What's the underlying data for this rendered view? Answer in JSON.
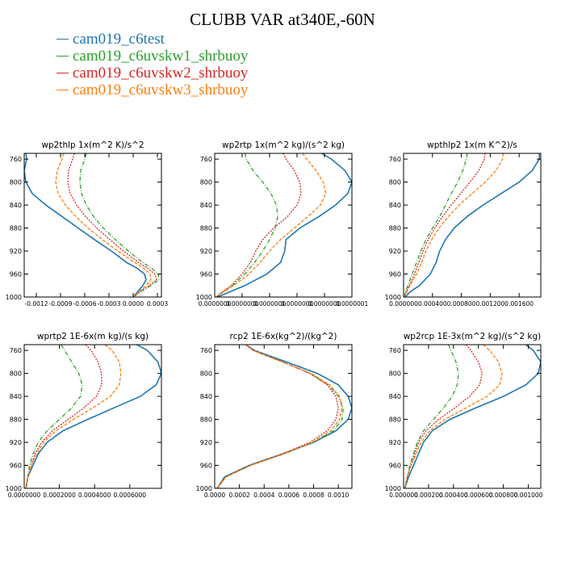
{
  "title": "CLUBB VAR at340E,-60N",
  "series": [
    {
      "name": "cam019_c6test",
      "color": "#1f77b4",
      "dash": ""
    },
    {
      "name": "cam019_c6uvskw1_shrbuoy",
      "color": "#2ca02c",
      "dash": "5,2,1,2"
    },
    {
      "name": "cam019_c6uvskw2_shrbuoy",
      "color": "#d62728",
      "dash": "2,1.5"
    },
    {
      "name": "cam019_c6uvskw3_shrbuoy",
      "color": "#ff7f0e",
      "dash": "4,2"
    }
  ],
  "chart_data": [
    {
      "type": "line",
      "title": "wp2thlp   1x(m^2 K)/s^2",
      "xlim": [
        -0.00135,
        0.00035
      ],
      "ylim": [
        1000,
        750
      ],
      "xticks": [
        -0.0012,
        -0.0009,
        -0.0006,
        -0.0003,
        0.0,
        0.0003
      ],
      "xtick_labels": [
        "-0.0012",
        "-0.0009",
        "-0.0006",
        "-0.0003",
        "0.0000",
        "0.0003"
      ],
      "yticks": [
        760,
        800,
        840,
        880,
        920,
        960,
        1000
      ],
      "p": [
        750,
        760,
        780,
        800,
        820,
        840,
        860,
        880,
        900,
        920,
        940,
        950,
        960,
        970,
        980,
        990,
        1000
      ],
      "series_x": [
        [
          -0.00133,
          -0.00132,
          -0.00135,
          -0.00133,
          -0.00125,
          -0.00108,
          -0.00088,
          -0.00068,
          -0.00048,
          -0.00027,
          -8e-05,
          5e-05,
          0.00014,
          0.00016,
          0.00012,
          6e-05,
          0.0
        ],
        [
          -0.00058,
          -0.0006,
          -0.00065,
          -0.00066,
          -0.00064,
          -0.00058,
          -0.00049,
          -0.00037,
          -0.00022,
          -6e-05,
          0.00012,
          0.00023,
          0.00031,
          0.00032,
          0.00022,
          0.0001,
          0.0
        ],
        [
          -0.00073,
          -0.00075,
          -0.0008,
          -0.00081,
          -0.00078,
          -0.0007,
          -0.00059,
          -0.00045,
          -0.00029,
          -0.00012,
          7e-05,
          0.00018,
          0.00027,
          0.00029,
          0.0002,
          9e-05,
          0.0
        ],
        [
          -0.00086,
          -0.00088,
          -0.00094,
          -0.00096,
          -0.00093,
          -0.00084,
          -0.00071,
          -0.00056,
          -0.00038,
          -0.00019,
          2e-05,
          0.00013,
          0.00021,
          0.00022,
          0.00016,
          8e-05,
          0.0
        ]
      ]
    },
    {
      "type": "line",
      "title": "wp2rtp   1x(m^2 kg)/(s^2 kg)",
      "xlim": [
        0.0,
        1e-07
      ],
      "ylim": [
        1000,
        750
      ],
      "xticks": [
        0.0,
        2e-08,
        4e-08,
        6e-08,
        8e-08,
        1e-07
      ],
      "xtick_labels": [
        "0.0000000",
        "0.0000000",
        "0.0000000",
        "0.0000000",
        "0.0000000",
        "0.0000001"
      ],
      "yticks": [
        760,
        800,
        840,
        880,
        920,
        960,
        1000
      ],
      "p": [
        750,
        760,
        780,
        800,
        820,
        840,
        860,
        880,
        900,
        920,
        940,
        960,
        980,
        990,
        1000
      ],
      "series_x": [
        [
          7.8e-08,
          8.5e-08,
          9.5e-08,
          1e-07,
          9.7e-08,
          8.8e-08,
          7.6e-08,
          6.2e-08,
          5.2e-08,
          5.1e-08,
          4.8e-08,
          3.8e-08,
          2.2e-08,
          1.2e-08,
          2e-09
        ],
        [
          2.2e-08,
          2.3e-08,
          2.8e-08,
          3.5e-08,
          4.1e-08,
          4.5e-08,
          4.6e-08,
          4.4e-08,
          4e-08,
          3.5e-08,
          2.9e-08,
          2.2e-08,
          1.3e-08,
          7e-09,
          1e-09
        ],
        [
          5e-08,
          5.2e-08,
          5.8e-08,
          6.2e-08,
          6.3e-08,
          6e-08,
          5.3e-08,
          4.3e-08,
          3.5e-08,
          3e-08,
          2.6e-08,
          2e-08,
          1.2e-08,
          6e-09,
          1e-09
        ],
        [
          6.4e-08,
          6.7e-08,
          7.4e-08,
          7.9e-08,
          8.1e-08,
          7.7e-08,
          6.8e-08,
          5.8e-08,
          4.8e-08,
          4e-08,
          3.3e-08,
          2.5e-08,
          1.4e-08,
          7e-09,
          1e-09
        ]
      ]
    },
    {
      "type": "line",
      "title": "wpthlp2   1x(m K^2)/s",
      "xlim": [
        0.0,
        0.0019
      ],
      "ylim": [
        1000,
        750
      ],
      "xticks": [
        0.0,
        0.0004,
        0.0008,
        0.0012,
        0.0016
      ],
      "xtick_labels": [
        "0.000000",
        "0.000400",
        "0.000800",
        "0.001200",
        "0.001600"
      ],
      "yticks": [
        760,
        800,
        840,
        880,
        920,
        960,
        1000
      ],
      "p": [
        750,
        760,
        780,
        800,
        820,
        840,
        860,
        880,
        900,
        920,
        940,
        960,
        980,
        990,
        1000
      ],
      "series_x": [
        [
          0.00188,
          0.00188,
          0.00178,
          0.0016,
          0.00135,
          0.0011,
          0.00088,
          0.0007,
          0.00058,
          0.0005,
          0.00045,
          0.00037,
          0.00022,
          0.0001,
          2e-05
        ],
        [
          0.00088,
          0.00087,
          0.00082,
          0.00075,
          0.00066,
          0.00058,
          0.0005,
          0.0004,
          0.00031,
          0.00024,
          0.00018,
          0.00012,
          6e-05,
          3e-05,
          1e-05
        ],
        [
          0.00113,
          0.00112,
          0.00104,
          0.00092,
          0.00079,
          0.00066,
          0.00054,
          0.00043,
          0.00034,
          0.00027,
          0.00021,
          0.00015,
          8e-05,
          4e-05,
          1e-05
        ],
        [
          0.00138,
          0.00137,
          0.00128,
          0.00113,
          0.00095,
          0.00077,
          0.00062,
          0.00049,
          0.00039,
          0.00031,
          0.00025,
          0.00018,
          9e-05,
          5e-05,
          1e-05
        ]
      ]
    },
    {
      "type": "line",
      "title": "wprtp2   1E-6x(m kg)/(s kg)",
      "xlim": [
        0.0,
        0.00078
      ],
      "ylim": [
        1000,
        750
      ],
      "xticks": [
        0.0,
        0.0002,
        0.0004,
        0.0006
      ],
      "xtick_labels": [
        "0.0000000",
        "0.0002000",
        "0.0004000",
        "0.0006000"
      ],
      "yticks": [
        760,
        800,
        840,
        880,
        920,
        960,
        1000
      ],
      "p": [
        750,
        760,
        780,
        800,
        820,
        840,
        860,
        880,
        900,
        920,
        940,
        960,
        980,
        1000
      ],
      "series_x": [
        [
          0.00064,
          0.0007,
          0.00076,
          0.00078,
          0.00075,
          0.00066,
          0.00051,
          0.00036,
          0.00022,
          0.00013,
          8e-05,
          5e-05,
          2e-05,
          1e-05
        ],
        [
          0.00021,
          0.00023,
          0.00027,
          0.00031,
          0.00033,
          0.00032,
          0.00027,
          0.0002,
          0.00013,
          8e-05,
          5e-05,
          3e-05,
          2e-05,
          1e-05
        ],
        [
          0.00035,
          0.00038,
          0.00042,
          0.00044,
          0.00044,
          0.00041,
          0.00034,
          0.00025,
          0.00016,
          0.0001,
          6e-05,
          4e-05,
          2e-05,
          1e-05
        ],
        [
          0.00046,
          0.0005,
          0.00054,
          0.00055,
          0.00054,
          0.00049,
          0.00039,
          0.00028,
          0.00018,
          0.00011,
          7e-05,
          4e-05,
          2e-05,
          1e-05
        ]
      ]
    },
    {
      "type": "line",
      "title": "rcp2   1E-6x(kg^2)/(kg^2)",
      "xlim": [
        0.0,
        0.00111
      ],
      "ylim": [
        1000,
        750
      ],
      "xticks": [
        0.0,
        0.0002,
        0.0004,
        0.0006,
        0.0008,
        0.001
      ],
      "xtick_labels": [
        "0.0000",
        "0.0002",
        "0.0004",
        "0.0006",
        "0.0008",
        "0.0010"
      ],
      "yticks": [
        760,
        800,
        840,
        880,
        920,
        960,
        1000
      ],
      "p": [
        750,
        760,
        780,
        800,
        820,
        840,
        860,
        880,
        900,
        920,
        940,
        960,
        980,
        1000
      ],
      "series_x": [
        [
          0.00025,
          0.00032,
          0.00058,
          0.00083,
          0.001,
          0.00108,
          0.00111,
          0.00108,
          0.00098,
          0.0008,
          0.00055,
          0.00028,
          8e-05,
          2e-05
        ],
        [
          0.00025,
          0.00031,
          0.00055,
          0.00077,
          0.00092,
          0.001,
          0.00104,
          0.00103,
          0.00096,
          0.0008,
          0.00056,
          0.00029,
          9e-05,
          2e-05
        ],
        [
          0.00025,
          0.00031,
          0.00055,
          0.00077,
          0.00091,
          0.00098,
          0.001,
          0.00098,
          0.00091,
          0.00077,
          0.00055,
          0.00029,
          9e-05,
          2e-05
        ],
        [
          0.00025,
          0.00031,
          0.00055,
          0.00078,
          0.00093,
          0.00101,
          0.00103,
          0.00101,
          0.00094,
          0.00079,
          0.00056,
          0.00029,
          9e-05,
          2e-05
        ]
      ]
    },
    {
      "type": "line",
      "title": "wp2rcp   1E-3x(m^2 kg)/(s^2 kg)",
      "xlim": [
        0.0,
        0.0011
      ],
      "ylim": [
        1000,
        750
      ],
      "xticks": [
        0.0,
        0.0002,
        0.0004,
        0.0006,
        0.0008,
        0.001
      ],
      "xtick_labels": [
        "0.000000",
        "0.000200",
        "0.000400",
        "0.000600",
        "0.000800",
        "0.001000"
      ],
      "yticks": [
        760,
        800,
        840,
        880,
        920,
        960,
        1000
      ],
      "p": [
        750,
        760,
        780,
        800,
        820,
        840,
        860,
        880,
        900,
        920,
        940,
        960,
        980,
        1000
      ],
      "series_x": [
        [
          0.00098,
          0.00104,
          0.0011,
          0.00108,
          0.00098,
          0.0008,
          0.00058,
          0.00037,
          0.00023,
          0.00016,
          0.00012,
          8e-05,
          4e-05,
          1e-05
        ],
        [
          0.00036,
          0.00038,
          0.00042,
          0.00044,
          0.00043,
          0.00039,
          0.00032,
          0.00024,
          0.00016,
          0.00011,
          8e-05,
          5e-05,
          3e-05,
          1e-05
        ],
        [
          0.0005,
          0.00054,
          0.0006,
          0.00063,
          0.00061,
          0.00053,
          0.00041,
          0.00028,
          0.00018,
          0.00012,
          9e-05,
          6e-05,
          3e-05,
          1e-05
        ],
        [
          0.00064,
          0.00069,
          0.00076,
          0.00079,
          0.00077,
          0.00067,
          0.0005,
          0.00033,
          0.00021,
          0.00014,
          0.0001,
          6e-05,
          3e-05,
          1e-05
        ]
      ]
    }
  ]
}
